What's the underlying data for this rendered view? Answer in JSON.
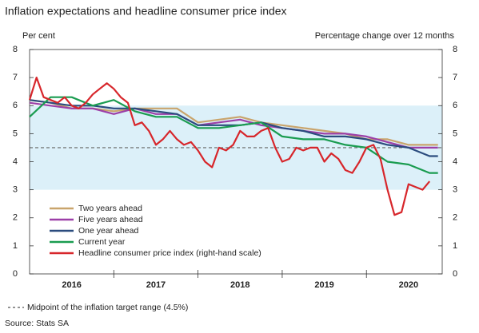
{
  "chart_data": {
    "type": "line",
    "title": "Inflation expectations and headline consumer price index",
    "y_label": "Per cent",
    "y2_label": "Percentage change over 12 months",
    "xlim": [
      2016,
      2020.9
    ],
    "xticks": [
      {
        "value": 2016.5,
        "label": "2016"
      },
      {
        "value": 2017.5,
        "label": "2017"
      },
      {
        "value": 2018.5,
        "label": "2018"
      },
      {
        "value": 2019.5,
        "label": "2019"
      },
      {
        "value": 2020.5,
        "label": "2020"
      }
    ],
    "x_separators": [
      2017,
      2018,
      2019,
      2020
    ],
    "ylim": [
      0,
      8
    ],
    "yticks": [
      0,
      1,
      2,
      3,
      4,
      5,
      6,
      7,
      8
    ],
    "y2lim": [
      0,
      8
    ],
    "y2ticks": [
      0,
      1,
      2,
      3,
      4,
      5,
      6,
      7,
      8
    ],
    "target_range": [
      3,
      6
    ],
    "target_midpoint": 4.5,
    "target_range_color": "#dcf0f9",
    "series": [
      {
        "name": "Two years ahead",
        "color": "#c9a46c",
        "x": [
          2016,
          2016.25,
          2016.5,
          2016.75,
          2017,
          2017.25,
          2017.5,
          2017.75,
          2018,
          2018.25,
          2018.5,
          2018.75,
          2019,
          2019.25,
          2019.5,
          2019.75,
          2020,
          2020.25,
          2020.5,
          2020.75,
          2020.85
        ],
        "values": [
          6.2,
          6.1,
          5.9,
          5.9,
          5.8,
          5.9,
          5.9,
          5.9,
          5.4,
          5.5,
          5.6,
          5.4,
          5.3,
          5.2,
          5.1,
          5.0,
          4.8,
          4.8,
          4.6,
          4.6,
          4.6
        ]
      },
      {
        "name": "Five years ahead",
        "color": "#9c3fa8",
        "x": [
          2016,
          2016.25,
          2016.5,
          2016.75,
          2017,
          2017.25,
          2017.5,
          2017.75,
          2018,
          2018.25,
          2018.5,
          2018.75,
          2019,
          2019.25,
          2019.5,
          2019.75,
          2020,
          2020.25,
          2020.5,
          2020.75,
          2020.85
        ],
        "values": [
          6.1,
          6.0,
          5.9,
          5.9,
          5.7,
          5.9,
          5.7,
          5.7,
          5.3,
          5.4,
          5.5,
          5.3,
          5.2,
          5.1,
          5.0,
          5.0,
          4.9,
          4.7,
          4.5,
          4.5,
          4.5
        ]
      },
      {
        "name": "One year ahead",
        "color": "#2b4c7e",
        "x": [
          2016,
          2016.25,
          2016.5,
          2016.75,
          2017,
          2017.25,
          2017.5,
          2017.75,
          2018,
          2018.25,
          2018.5,
          2018.75,
          2019,
          2019.25,
          2019.5,
          2019.75,
          2020,
          2020.25,
          2020.5,
          2020.75,
          2020.85
        ],
        "values": [
          6.2,
          6.1,
          6.0,
          6.0,
          5.9,
          5.9,
          5.8,
          5.7,
          5.3,
          5.3,
          5.3,
          5.4,
          5.2,
          5.1,
          4.9,
          4.9,
          4.8,
          4.6,
          4.5,
          4.2,
          4.2
        ]
      },
      {
        "name": "Current year",
        "color": "#1a9c50",
        "x": [
          2016,
          2016.25,
          2016.5,
          2016.75,
          2017,
          2017.25,
          2017.5,
          2017.75,
          2018,
          2018.25,
          2018.5,
          2018.75,
          2019,
          2019.25,
          2019.5,
          2019.75,
          2020,
          2020.25,
          2020.5,
          2020.75,
          2020.85
        ],
        "values": [
          5.6,
          6.3,
          6.3,
          6.0,
          6.2,
          5.8,
          5.6,
          5.6,
          5.2,
          5.2,
          5.3,
          5.4,
          4.9,
          4.8,
          4.8,
          4.6,
          4.5,
          4.0,
          3.9,
          3.6,
          3.6
        ]
      },
      {
        "name": "Headline consumer price index (right-hand scale)",
        "color": "#d7262b",
        "axis": "y2",
        "x": [
          2016,
          2016.083,
          2016.167,
          2016.25,
          2016.333,
          2016.417,
          2016.5,
          2016.583,
          2016.667,
          2016.75,
          2016.833,
          2016.917,
          2017,
          2017.083,
          2017.167,
          2017.25,
          2017.333,
          2017.417,
          2017.5,
          2017.583,
          2017.667,
          2017.75,
          2017.833,
          2017.917,
          2018,
          2018.083,
          2018.167,
          2018.25,
          2018.333,
          2018.417,
          2018.5,
          2018.583,
          2018.667,
          2018.75,
          2018.833,
          2018.917,
          2019,
          2019.083,
          2019.167,
          2019.25,
          2019.333,
          2019.417,
          2019.5,
          2019.583,
          2019.667,
          2019.75,
          2019.833,
          2019.917,
          2020,
          2020.083,
          2020.167,
          2020.25,
          2020.333,
          2020.417,
          2020.5,
          2020.583,
          2020.667,
          2020.75
        ],
        "values": [
          6.2,
          7.0,
          6.3,
          6.2,
          6.1,
          6.3,
          6.0,
          5.9,
          6.1,
          6.4,
          6.6,
          6.8,
          6.6,
          6.3,
          6.1,
          5.3,
          5.4,
          5.1,
          4.6,
          4.8,
          5.1,
          4.8,
          4.6,
          4.7,
          4.4,
          4.0,
          3.8,
          4.5,
          4.4,
          4.6,
          5.1,
          4.9,
          4.9,
          5.1,
          5.2,
          4.5,
          4.0,
          4.1,
          4.5,
          4.4,
          4.5,
          4.5,
          4.0,
          4.3,
          4.1,
          3.7,
          3.6,
          4.0,
          4.5,
          4.6,
          4.1,
          3.0,
          2.1,
          2.2,
          3.2,
          3.1,
          3.0,
          3.3
        ]
      }
    ],
    "footnote": "Midpoint of the inflation target range (4.5%)",
    "source": "Source: Stats SA"
  }
}
